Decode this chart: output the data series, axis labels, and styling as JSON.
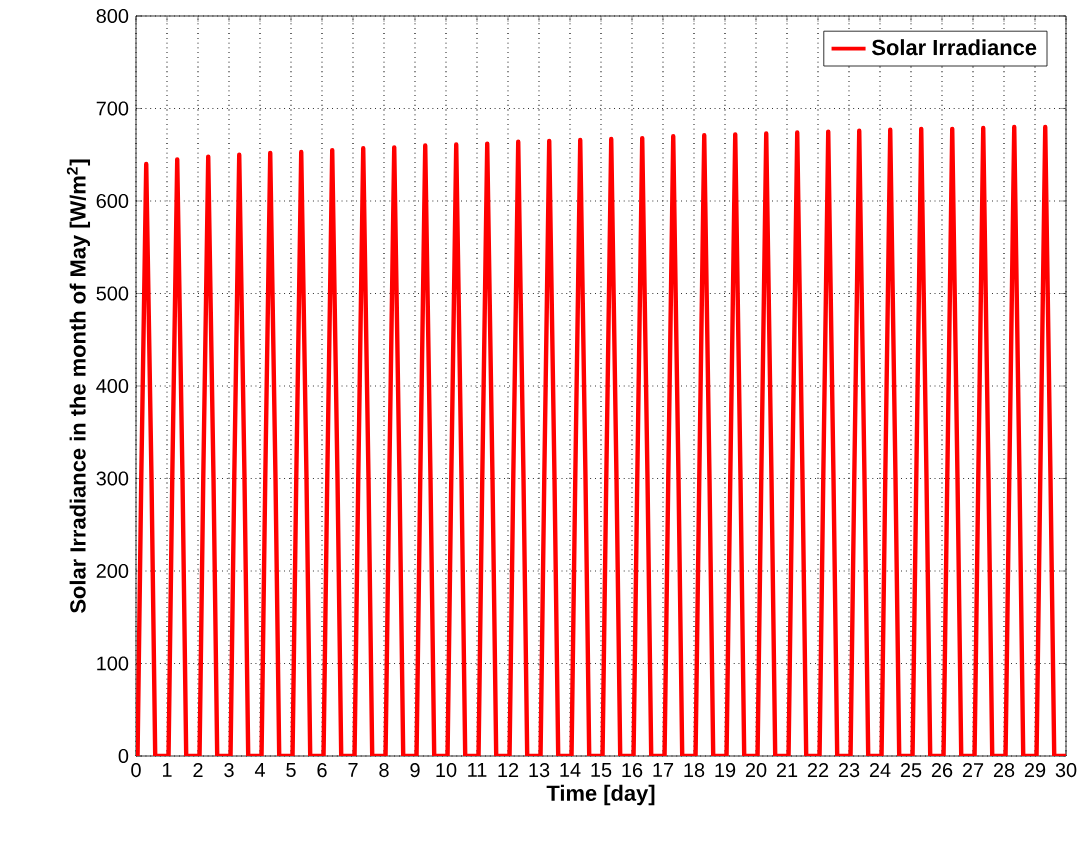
{
  "chart_data": {
    "type": "line",
    "xlabel": "Time [day]",
    "ylabel": "Solar Irradiance in the month of May [W/m$^{2}$]",
    "xlim": [
      0,
      30
    ],
    "ylim": [
      0,
      800
    ],
    "xticks": [
      0,
      1,
      2,
      3,
      4,
      5,
      6,
      7,
      8,
      9,
      10,
      11,
      12,
      13,
      14,
      15,
      16,
      17,
      18,
      19,
      20,
      21,
      22,
      23,
      24,
      25,
      26,
      27,
      28,
      29,
      30
    ],
    "yticks": [
      0,
      100,
      200,
      300,
      400,
      500,
      600,
      700,
      800
    ],
    "grid": true,
    "legend": "top right",
    "series": [
      {
        "name": "Solar Irradiance",
        "color": "#ff0000",
        "x": [
          0,
          0.05,
          0.17,
          0.33,
          0.5,
          0.62,
          1.05,
          1.17,
          1.33,
          1.5,
          1.62,
          2.05,
          2.17,
          2.33,
          2.5,
          2.62,
          3.05,
          3.17,
          3.33,
          3.5,
          3.62,
          4.05,
          4.17,
          4.33,
          4.5,
          4.62,
          5.05,
          5.17,
          5.33,
          5.5,
          5.62,
          6.05,
          6.17,
          6.33,
          6.5,
          6.62,
          7.05,
          7.17,
          7.33,
          7.5,
          7.62,
          8.05,
          8.17,
          8.33,
          8.5,
          8.62,
          9.05,
          9.17,
          9.33,
          9.5,
          9.62,
          10.05,
          10.17,
          10.33,
          10.5,
          10.62,
          11.05,
          11.17,
          11.33,
          11.5,
          11.62,
          12.05,
          12.17,
          12.33,
          12.5,
          12.62,
          13.05,
          13.17,
          13.33,
          13.5,
          13.62,
          14.05,
          14.17,
          14.33,
          14.5,
          14.62,
          15.05,
          15.17,
          15.33,
          15.5,
          15.62,
          16.05,
          16.17,
          16.33,
          16.5,
          16.62,
          17.05,
          17.17,
          17.33,
          17.5,
          17.62,
          18.05,
          18.17,
          18.33,
          18.5,
          18.62,
          19.05,
          19.17,
          19.33,
          19.5,
          19.62,
          20.05,
          20.17,
          20.33,
          20.5,
          20.62,
          21.05,
          21.17,
          21.33,
          21.5,
          21.62,
          22.05,
          22.17,
          22.33,
          22.5,
          22.62,
          23.05,
          23.17,
          23.33,
          23.5,
          23.62,
          24.05,
          24.17,
          24.33,
          24.5,
          24.62,
          25.05,
          25.17,
          25.33,
          25.5,
          25.62,
          26.05,
          26.17,
          26.33,
          26.5,
          26.62,
          27.05,
          27.17,
          27.33,
          27.5,
          27.62,
          28.05,
          28.17,
          28.33,
          28.5,
          28.62,
          29.05,
          29.17,
          29.33,
          29.5,
          29.62,
          30
        ],
        "values": [
          0,
          0,
          300,
          640,
          300,
          0,
          0,
          300,
          645,
          300,
          0,
          0,
          300,
          648,
          300,
          0,
          0,
          300,
          650,
          300,
          0,
          0,
          300,
          652,
          300,
          0,
          0,
          300,
          653,
          300,
          0,
          0,
          300,
          655,
          300,
          0,
          0,
          300,
          657,
          300,
          0,
          0,
          300,
          658,
          300,
          0,
          0,
          300,
          660,
          300,
          0,
          0,
          300,
          661,
          300,
          0,
          0,
          300,
          662,
          300,
          0,
          0,
          300,
          664,
          300,
          0,
          0,
          300,
          665,
          300,
          0,
          0,
          300,
          666,
          300,
          0,
          0,
          300,
          667,
          300,
          0,
          0,
          300,
          668,
          300,
          0,
          0,
          300,
          670,
          300,
          0,
          0,
          300,
          671,
          300,
          0,
          0,
          300,
          672,
          300,
          0,
          0,
          300,
          673,
          300,
          0,
          0,
          300,
          674,
          300,
          0,
          0,
          300,
          675,
          300,
          0,
          0,
          300,
          676,
          300,
          0,
          0,
          300,
          677,
          300,
          0,
          0,
          300,
          678,
          300,
          0,
          0,
          300,
          678,
          300,
          0,
          0,
          300,
          679,
          300,
          0,
          0,
          300,
          680,
          300,
          0,
          0,
          300,
          680,
          300,
          0,
          0
        ]
      }
    ]
  }
}
